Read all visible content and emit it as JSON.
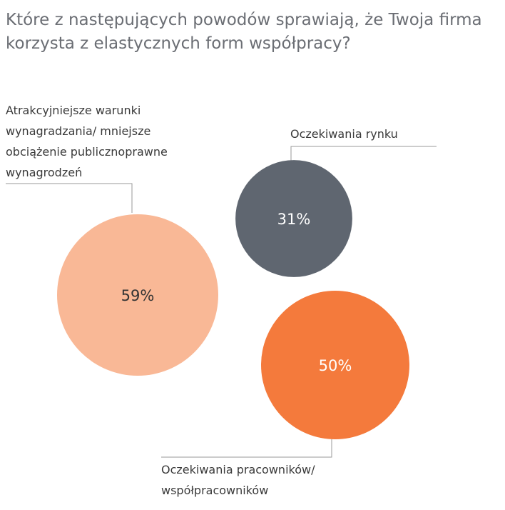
{
  "question": {
    "line1": "Które z następujących powodów sprawiają, że Twoja firma",
    "line2": "korzysta z elastycznych form współpracy?"
  },
  "chart_data": {
    "type": "bubble",
    "unit": "%",
    "items": [
      {
        "label_lines": [
          "Atrakcyjniejsze warunki",
          "wynagradzania/ mniejsze",
          "obciążenie publicznoprawne",
          "wynagrodzeń"
        ],
        "value": 59,
        "value_label": "59%",
        "color": "#f9b896",
        "text_color": "#333333"
      },
      {
        "label_lines": [
          "Oczekiwania rynku"
        ],
        "value": 31,
        "value_label": "31%",
        "color": "#5f6670",
        "text_color": "#ffffff"
      },
      {
        "label_lines": [
          "Oczekiwania pracowników/",
          "współpracowników"
        ],
        "value": 50,
        "value_label": "50%",
        "color": "#f47a3c",
        "text_color": "#ffffff"
      }
    ]
  }
}
